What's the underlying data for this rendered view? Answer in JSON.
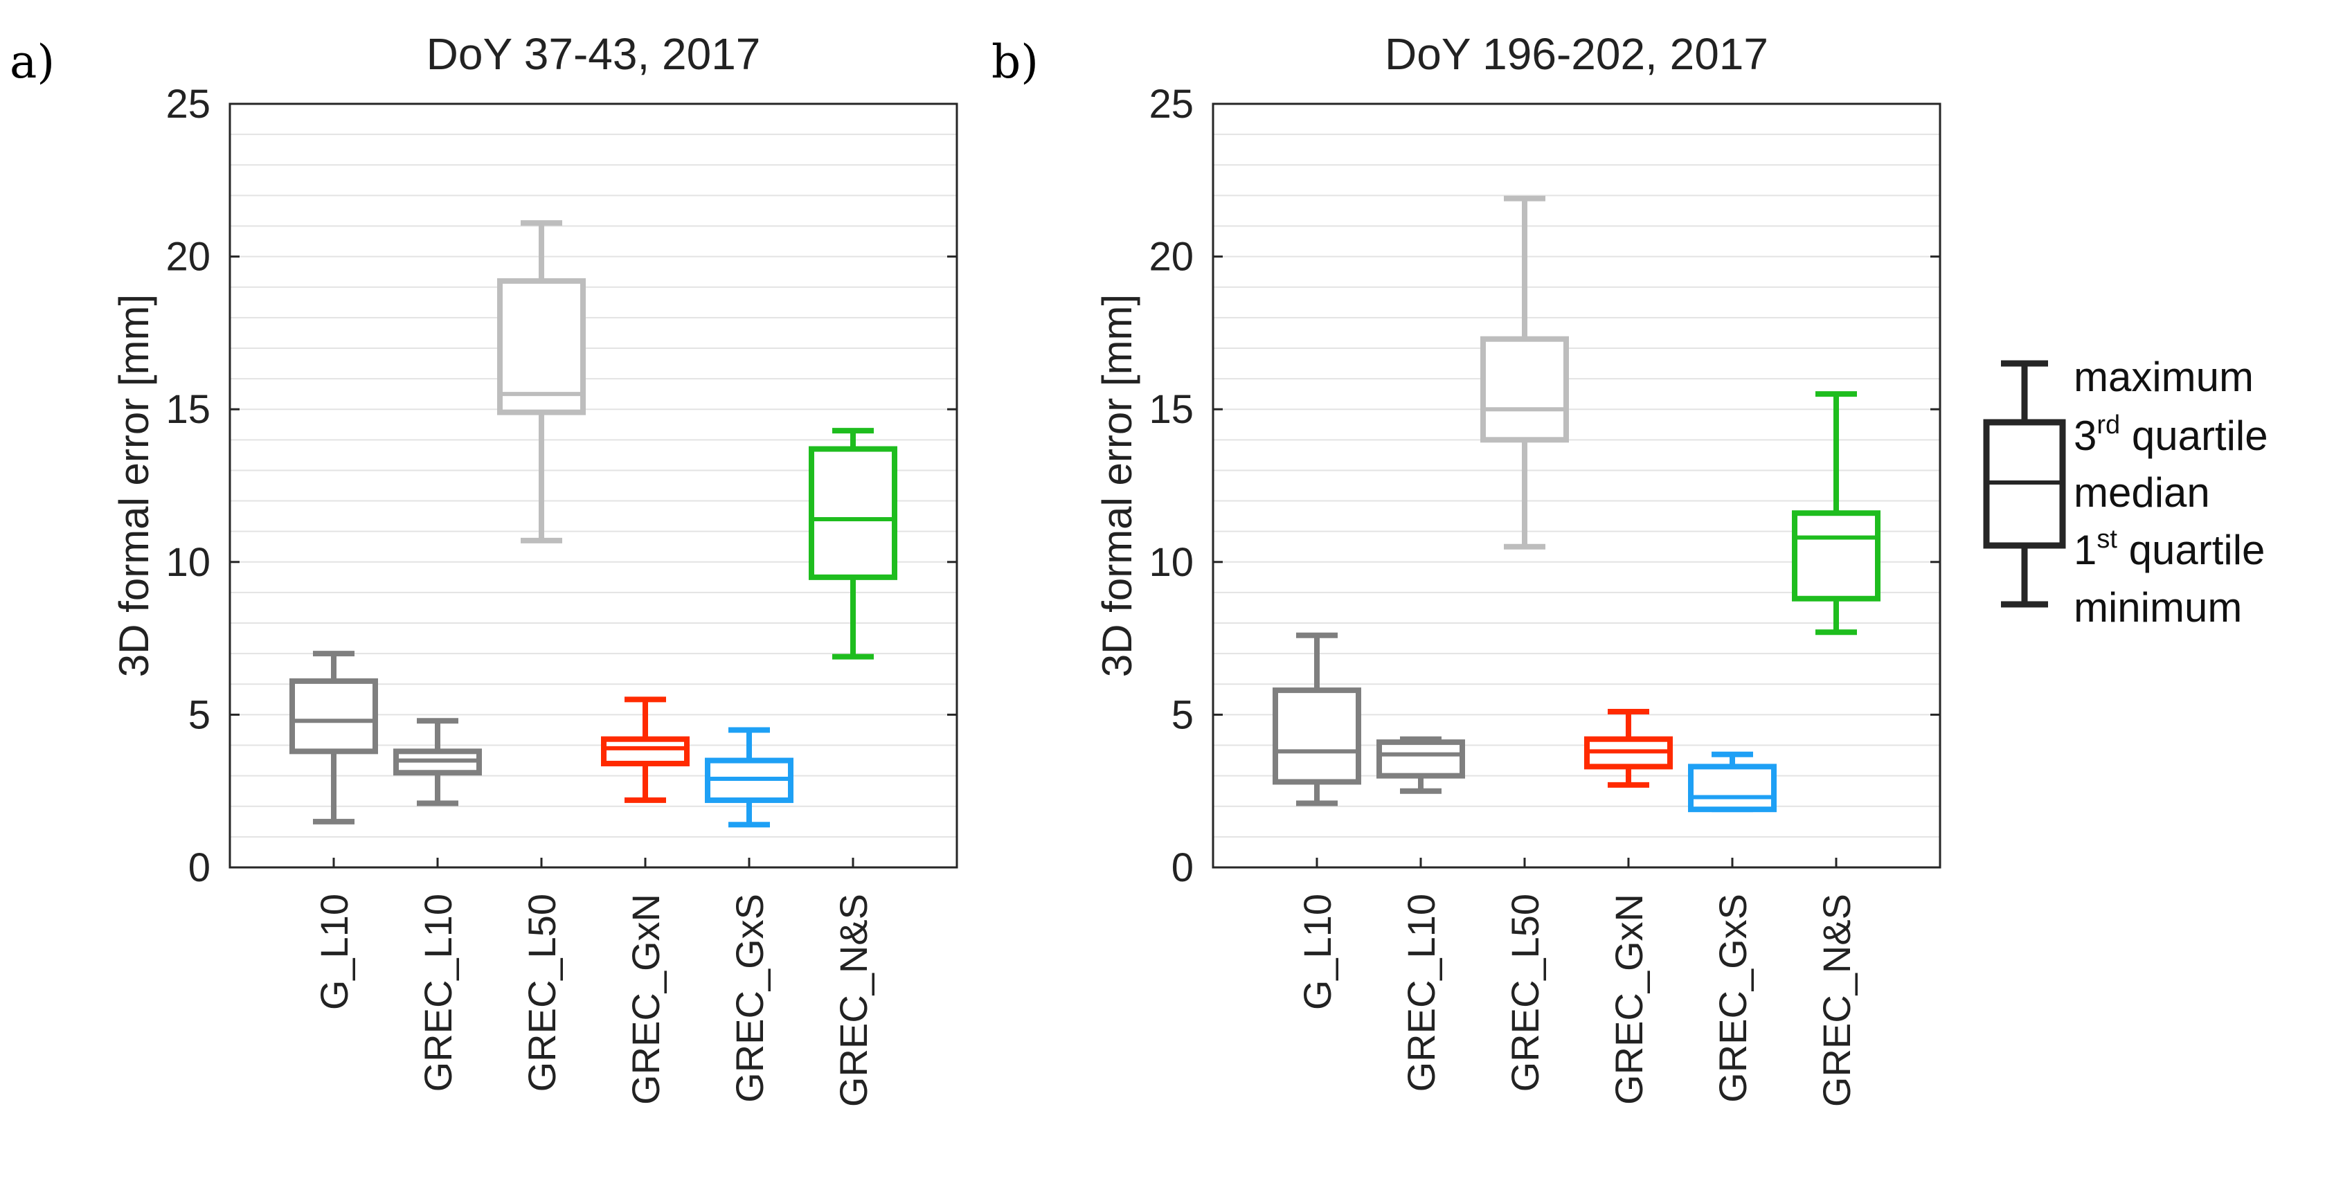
{
  "chart_data": [
    {
      "type": "box",
      "panel_label": "a)",
      "title": "DoY 37-43, 2017",
      "ylabel": "3D formal error [mm]",
      "ylim": [
        0,
        25
      ],
      "yticks": [
        0,
        5,
        10,
        15,
        20,
        25
      ],
      "grid": "horizontal minor lines",
      "categories": [
        "G_L10",
        "GREC_L10",
        "GREC_L50",
        "GREC_GxN",
        "GREC_GxS",
        "GREC_N&S"
      ],
      "colors": [
        "#7f7f7f",
        "#7f7f7f",
        "#bdbdbd",
        "#ff2a00",
        "#1ea0f5",
        "#1ebd1e"
      ],
      "boxes": [
        {
          "min": 1.5,
          "q1": 3.8,
          "median": 4.8,
          "q3": 6.1,
          "max": 7.0
        },
        {
          "min": 2.1,
          "q1": 3.1,
          "median": 3.5,
          "q3": 3.8,
          "max": 4.8
        },
        {
          "min": 10.7,
          "q1": 14.9,
          "median": 15.5,
          "q3": 19.2,
          "max": 21.1
        },
        {
          "min": 2.2,
          "q1": 3.4,
          "median": 3.9,
          "q3": 4.2,
          "max": 5.5
        },
        {
          "min": 1.4,
          "q1": 2.2,
          "median": 2.9,
          "q3": 3.5,
          "max": 4.5
        },
        {
          "min": 6.9,
          "q1": 9.5,
          "median": 11.4,
          "q3": 13.7,
          "max": 14.3
        }
      ]
    },
    {
      "type": "box",
      "panel_label": "b)",
      "title": "DoY 196-202, 2017",
      "ylabel": "3D formal error [mm]",
      "ylim": [
        0,
        25
      ],
      "yticks": [
        0,
        5,
        10,
        15,
        20,
        25
      ],
      "grid": "horizontal minor lines",
      "categories": [
        "G_L10",
        "GREC_L10",
        "GREC_L50",
        "GREC_GxN",
        "GREC_GxS",
        "GREC_N&S"
      ],
      "colors": [
        "#7f7f7f",
        "#7f7f7f",
        "#bdbdbd",
        "#ff2a00",
        "#1ea0f5",
        "#1ebd1e"
      ],
      "boxes": [
        {
          "min": 2.1,
          "q1": 2.8,
          "median": 3.8,
          "q3": 5.8,
          "max": 7.6
        },
        {
          "min": 2.5,
          "q1": 3.0,
          "median": 3.7,
          "q3": 4.1,
          "max": 4.2
        },
        {
          "min": 10.5,
          "q1": 14.0,
          "median": 15.0,
          "q3": 17.3,
          "max": 21.9
        },
        {
          "min": 2.7,
          "q1": 3.3,
          "median": 3.8,
          "q3": 4.2,
          "max": 5.1
        },
        {
          "min": 1.9,
          "q1": 1.9,
          "median": 2.3,
          "q3": 3.3,
          "max": 3.7
        },
        {
          "min": 7.7,
          "q1": 8.8,
          "median": 10.8,
          "q3": 11.6,
          "max": 15.5
        }
      ]
    }
  ],
  "legend": {
    "color": "#262626",
    "items": [
      {
        "text": "maximum",
        "sup": ""
      },
      {
        "text": "3",
        "sup": "rd",
        "rest": " quartile"
      },
      {
        "text": "median",
        "sup": ""
      },
      {
        "text": "1",
        "sup": "st",
        "rest": " quartile"
      },
      {
        "text": "minimum",
        "sup": ""
      }
    ]
  }
}
